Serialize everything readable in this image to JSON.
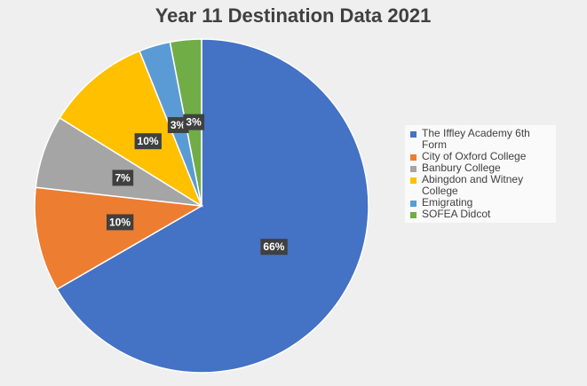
{
  "chart_data": {
    "type": "pie",
    "title": "Year 11 Destination Data 2021",
    "categories": [
      "The Iffley Academy 6th Form",
      "City of Oxford College",
      "Banbury College",
      "Abingdon and Witney College",
      "Emigrating",
      "SOFEA Didcot"
    ],
    "values": [
      66,
      10,
      7,
      10,
      3,
      3
    ],
    "value_labels": [
      "66%",
      "10%",
      "7%",
      "10%",
      "3%",
      "3%"
    ],
    "colors": [
      "#4472c4",
      "#ed7d31",
      "#a5a5a5",
      "#ffc000",
      "#5b9bd5",
      "#70ad47"
    ],
    "legend": "right"
  }
}
